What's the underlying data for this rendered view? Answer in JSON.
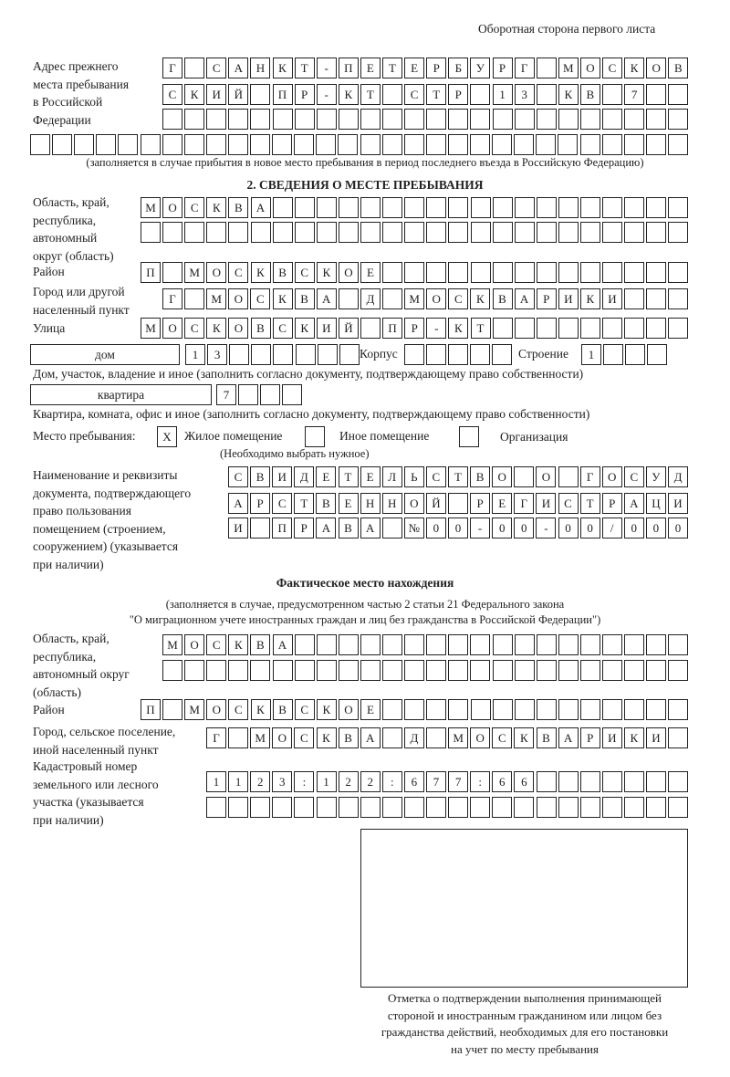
{
  "header": "Оборотная сторона первого листа",
  "previous_address": {
    "label": "Адрес прежнего места пребывания в Российской Федерации",
    "label_lines": [
      "Адрес прежнего",
      "места пребывания",
      "в Российской",
      "Федерации"
    ],
    "rows": [
      "Г САНКТ-ПЕТЕРБУРГ МОСКОВ",
      "СКИЙ ПР-КТ СТР 13 КВ 7",
      "",
      ""
    ],
    "note": "(заполняется в случае прибытия в новое место пребывания в период последнего въезда в Российскую Федерацию)"
  },
  "section2": {
    "title": "2. СВЕДЕНИЯ О МЕСТЕ ПРЕБЫВАНИЯ",
    "region_label": [
      "Область, край,",
      "республика,",
      "автономный",
      "округ (область)"
    ],
    "region_rows": [
      "МОСКВА",
      ""
    ],
    "district_label": "Район",
    "district": "П МОСКВСКОЕ",
    "city_label": [
      "Город или другой",
      "населенный пункт"
    ],
    "city": "Г МОСКВА Д МОСКВАРИКИ",
    "street_label": "Улица",
    "street": "МОСКОВСКИЙ ПР-КТ",
    "house_type": "дом",
    "house_number": "13",
    "korpus_label": "Корпус",
    "korpus": "",
    "building_label": "Строение",
    "building": "1",
    "house_note": "Дом, участок, владение и иное (заполнить согласно документу, подтверждающему право собственности)",
    "apartment_type": "квартира",
    "apartment_number": "7",
    "apartment_note": "Квартира, комната, офис и иное (заполнить согласно документу, подтверждающему право собственности)",
    "place_label": "Место пребывания:",
    "place_options": [
      {
        "label": "Жилое помещение",
        "mark": "X",
        "checked": true
      },
      {
        "label": "Иное помещение",
        "mark": "",
        "checked": false
      },
      {
        "label": "Организация",
        "mark": "",
        "checked": false
      }
    ],
    "place_note": "(Необходимо выбрать нужное)",
    "doc_label": [
      "Наименование и реквизиты",
      "документа, подтверждающего",
      "право пользования",
      "помещением (строением,",
      "сооружением) (указывается",
      "при наличии)"
    ],
    "doc_rows": [
      "СВИДЕТЕЛЬСТВО О ГОСУД",
      "АРСТВЕННОЙ РЕГИСТРАЦИ",
      "И ПРАВА №00-00-00/000"
    ]
  },
  "actual": {
    "title": "Фактическое место нахождения",
    "note_lines": [
      "(заполняется в случае, предусмотренном частью 2 статьи 21 Федерального закона",
      "\"О миграционном учете иностранных граждан и лиц без гражданства в Российской Федерации\")"
    ],
    "region_label": [
      "Область, край,",
      "республика,",
      "автономный округ",
      "(область)"
    ],
    "region_rows": [
      "МОСКВА",
      ""
    ],
    "district_label": "Район",
    "district": "П МОСКВСКОЕ",
    "city_label": [
      "Город, сельское поселение,",
      "иной населенный пункт"
    ],
    "city": "Г МОСКВА Д МОСКВАРИКИ",
    "cadastral_label": [
      "Кадастровый номер",
      "земельного или лесного",
      "участка (указывается",
      "при наличии)"
    ],
    "cadastral_rows": [
      "1123:122:677:66",
      ""
    ]
  },
  "stamp": {
    "caption_lines": [
      "Отметка о подтверждении выполнения принимающей",
      "стороной и иностранным гражданином или лицом без",
      "гражданства действий, необходимых для его постановки",
      "на учет по месту пребывания"
    ]
  }
}
